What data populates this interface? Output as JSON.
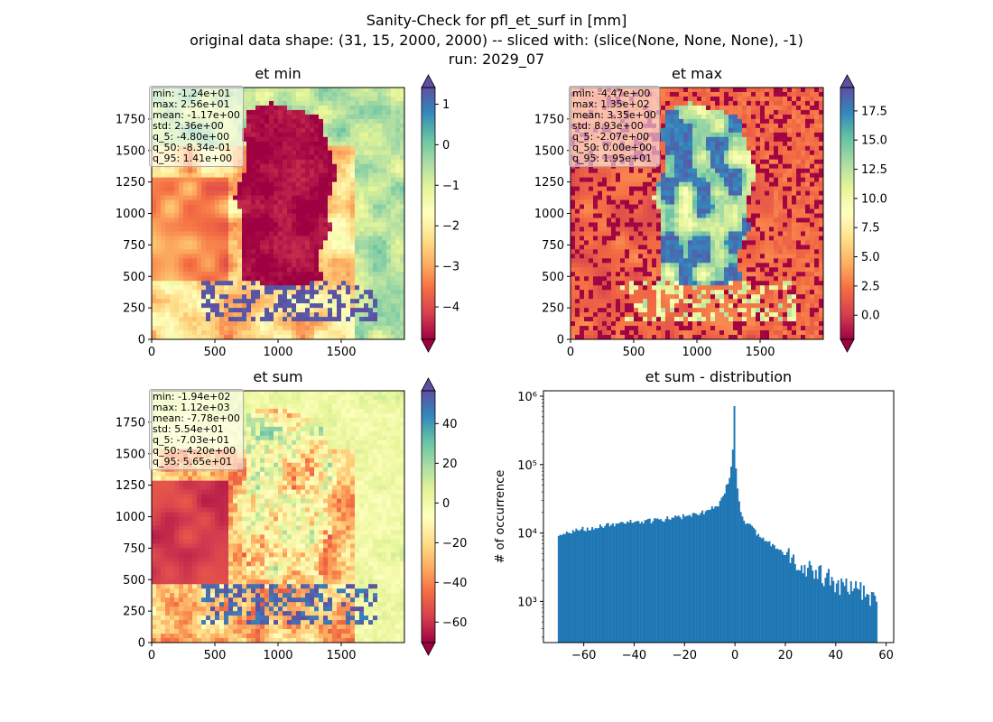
{
  "figure": {
    "title_lines": [
      "Sanity-Check for pfl_et_surf in [mm]",
      "original data shape: (31, 15, 2000, 2000) -- sliced with: (slice(None, None, None), -1)",
      "run: 2029_07"
    ]
  },
  "chart_data": [
    {
      "type": "heatmap",
      "title": "et min",
      "x_ticks": [
        0,
        500,
        1000,
        1500
      ],
      "y_ticks": [
        0,
        250,
        500,
        750,
        1000,
        1250,
        1500,
        1750
      ],
      "xlim": [
        0,
        2000
      ],
      "ylim": [
        0,
        2000
      ],
      "colormap": "Spectral",
      "colorbar": {
        "range": [
          -4.8,
          1.41
        ],
        "ticks": [
          1,
          0,
          -1,
          -2,
          -3,
          -4
        ],
        "tick_labels": [
          "1",
          "0",
          "−1",
          "−2",
          "−3",
          "−4"
        ],
        "extend": "both"
      },
      "stats": [
        "min: -1.24e+01",
        "max: 2.56e+01",
        "mean: -1.17e+00",
        "std: 2.36e+00",
        "q_5: -4.80e+00",
        "q_50: -8.34e-01",
        "q_95: 1.41e+00"
      ]
    },
    {
      "type": "heatmap",
      "title": "et max",
      "x_ticks": [
        0,
        500,
        1000,
        1500
      ],
      "y_ticks": [
        0,
        250,
        500,
        750,
        1000,
        1250,
        1500,
        1750
      ],
      "xlim": [
        0,
        2000
      ],
      "ylim": [
        0,
        2000
      ],
      "colormap": "Spectral",
      "colorbar": {
        "range": [
          -2.07,
          19.5
        ],
        "ticks": [
          17.5,
          15.0,
          12.5,
          10.0,
          7.5,
          5.0,
          2.5,
          0.0
        ],
        "tick_labels": [
          "17.5",
          "15.0",
          "12.5",
          "10.0",
          "7.5",
          "5.0",
          "2.5",
          "0.0"
        ],
        "extend": "both"
      },
      "stats": [
        "min: -4.47e+00",
        "max: 1.35e+02",
        "mean: 3.35e+00",
        "std: 8.93e+00",
        "q_5: -2.07e+00",
        "q_50: 0.00e+00",
        "q_95: 1.95e+01"
      ]
    },
    {
      "type": "heatmap",
      "title": "et sum",
      "x_ticks": [
        0,
        500,
        1000,
        1500
      ],
      "y_ticks": [
        0,
        250,
        500,
        750,
        1000,
        1250,
        1500,
        1750
      ],
      "xlim": [
        0,
        2000
      ],
      "ylim": [
        0,
        2000
      ],
      "colormap": "Spectral",
      "colorbar": {
        "range": [
          -70.3,
          56.5
        ],
        "ticks": [
          40,
          20,
          0,
          -20,
          -40,
          -60
        ],
        "tick_labels": [
          "40",
          "20",
          "0",
          "−20",
          "−40",
          "−60"
        ],
        "extend": "both"
      },
      "stats": [
        "min: -1.94e+02",
        "max: 1.12e+03",
        "mean: -7.78e+00",
        "std: 5.54e+01",
        "q_5: -7.03e+01",
        "q_50: -4.20e+00",
        "q_95: 5.65e+01"
      ]
    },
    {
      "type": "bar",
      "title": "et sum - distribution",
      "ylabel": "# of occurrence",
      "xlabel": "",
      "yscale": "log",
      "xlim": [
        -76,
        63
      ],
      "ylim": [
        250,
        1200000
      ],
      "x_ticks": [
        -60,
        -40,
        -20,
        0,
        20,
        40,
        60
      ],
      "x_tick_labels": [
        "−60",
        "−40",
        "−20",
        "0",
        "20",
        "40",
        "60"
      ],
      "y_ticks": [
        1000,
        10000,
        100000,
        1000000
      ],
      "y_tick_labels": [
        "10³",
        "10⁴",
        "10⁵",
        "10⁶"
      ],
      "bar_color": "#1f77b4",
      "bins": {
        "x_start": -70.3,
        "bin_width": 0.634,
        "n": 200
      },
      "envelope": [
        [
          -70.3,
          9000
        ],
        [
          -60,
          11500
        ],
        [
          -50,
          13000
        ],
        [
          -40,
          14500
        ],
        [
          -30,
          15500
        ],
        [
          -20,
          17500
        ],
        [
          -12,
          20000
        ],
        [
          -7,
          25000
        ],
        [
          -4,
          40000
        ],
        [
          -2,
          70000
        ],
        [
          -1,
          120000
        ],
        [
          -0.3,
          850000
        ],
        [
          0.3,
          90000
        ],
        [
          1,
          45000
        ],
        [
          2,
          22000
        ],
        [
          4,
          15000
        ],
        [
          10,
          9000
        ],
        [
          20,
          5000
        ],
        [
          30,
          3000
        ],
        [
          40,
          2000
        ],
        [
          50,
          1500
        ],
        [
          56.5,
          1200
        ]
      ]
    }
  ]
}
